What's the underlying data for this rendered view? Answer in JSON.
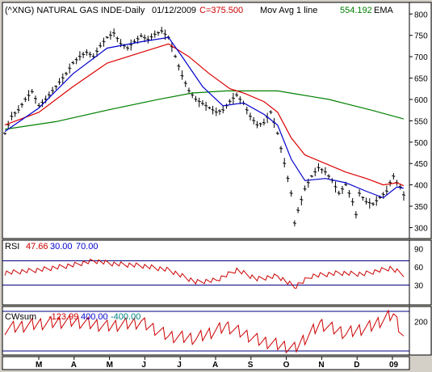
{
  "colors": {
    "background": "#d4d0c8",
    "panel": "#ffffff",
    "price": "#000000",
    "ema_short": "#0000cc",
    "ema_medium": "#dd0000",
    "ema_long": "#008000",
    "rsi_line": "#cc0000",
    "rsi_oversold": "#00aa00",
    "magenta": "#ff00ff",
    "guide": "#000080"
  },
  "header": {
    "symbol": "(^XNG) NATURAL GAS INDE-Daily",
    "date": "01/12/2009",
    "close": "C=375.500",
    "indicator": "Mov Avg 1 line",
    "ema_value": "554.192",
    "ema_label": "EMA"
  },
  "rsi_header": {
    "label": "RSI",
    "value": "47.66",
    "lower": "30.00",
    "upper": "70.00"
  },
  "cwsum_header": {
    "label": "CWsum",
    "value": "-123.99",
    "upper": "400.00",
    "lower": "-400.00"
  },
  "chart_data": [
    {
      "type": "ohlc",
      "title": "(^XNG) NATURAL GAS INDE-Daily",
      "x_ticks": [
        "M",
        "A",
        "M",
        "J",
        "J",
        "A",
        "S",
        "O",
        "N",
        "D",
        "09"
      ],
      "y_ticks": [
        300,
        350,
        400,
        450,
        500,
        550,
        600,
        650,
        700,
        750,
        800
      ],
      "ylim": [
        280,
        810
      ],
      "approx_close": [
        {
          "x": 0,
          "y": 520
        },
        {
          "x": 4,
          "y": 560
        },
        {
          "x": 8,
          "y": 575
        },
        {
          "x": 12,
          "y": 600
        },
        {
          "x": 16,
          "y": 618
        },
        {
          "x": 20,
          "y": 585
        },
        {
          "x": 24,
          "y": 600
        },
        {
          "x": 28,
          "y": 620
        },
        {
          "x": 32,
          "y": 640
        },
        {
          "x": 36,
          "y": 660
        },
        {
          "x": 40,
          "y": 685
        },
        {
          "x": 44,
          "y": 700
        },
        {
          "x": 48,
          "y": 710
        },
        {
          "x": 52,
          "y": 700
        },
        {
          "x": 56,
          "y": 725
        },
        {
          "x": 60,
          "y": 745
        },
        {
          "x": 64,
          "y": 755
        },
        {
          "x": 68,
          "y": 730
        },
        {
          "x": 72,
          "y": 720
        },
        {
          "x": 76,
          "y": 735
        },
        {
          "x": 80,
          "y": 748
        },
        {
          "x": 84,
          "y": 740
        },
        {
          "x": 88,
          "y": 752
        },
        {
          "x": 92,
          "y": 760
        },
        {
          "x": 96,
          "y": 745
        },
        {
          "x": 100,
          "y": 700
        },
        {
          "x": 104,
          "y": 655
        },
        {
          "x": 108,
          "y": 620
        },
        {
          "x": 112,
          "y": 600
        },
        {
          "x": 116,
          "y": 590
        },
        {
          "x": 120,
          "y": 580
        },
        {
          "x": 124,
          "y": 570
        },
        {
          "x": 128,
          "y": 575
        },
        {
          "x": 132,
          "y": 595
        },
        {
          "x": 136,
          "y": 610
        },
        {
          "x": 140,
          "y": 590
        },
        {
          "x": 144,
          "y": 560
        },
        {
          "x": 148,
          "y": 540
        },
        {
          "x": 152,
          "y": 545
        },
        {
          "x": 156,
          "y": 570
        },
        {
          "x": 160,
          "y": 520
        },
        {
          "x": 164,
          "y": 450
        },
        {
          "x": 168,
          "y": 380
        },
        {
          "x": 170,
          "y": 310
        },
        {
          "x": 172,
          "y": 340
        },
        {
          "x": 176,
          "y": 390
        },
        {
          "x": 180,
          "y": 420
        },
        {
          "x": 184,
          "y": 440
        },
        {
          "x": 188,
          "y": 430
        },
        {
          "x": 192,
          "y": 410
        },
        {
          "x": 196,
          "y": 380
        },
        {
          "x": 200,
          "y": 400
        },
        {
          "x": 204,
          "y": 360
        },
        {
          "x": 206,
          "y": 330
        },
        {
          "x": 208,
          "y": 380
        },
        {
          "x": 212,
          "y": 360
        },
        {
          "x": 216,
          "y": 355
        },
        {
          "x": 220,
          "y": 370
        },
        {
          "x": 224,
          "y": 385
        },
        {
          "x": 226,
          "y": 405
        },
        {
          "x": 228,
          "y": 420
        },
        {
          "x": 230,
          "y": 405
        },
        {
          "x": 232,
          "y": 395
        },
        {
          "x": 234,
          "y": 376
        }
      ],
      "ema_short": [
        {
          "x": 0,
          "y": 525
        },
        {
          "x": 20,
          "y": 580
        },
        {
          "x": 40,
          "y": 660
        },
        {
          "x": 60,
          "y": 720
        },
        {
          "x": 80,
          "y": 735
        },
        {
          "x": 96,
          "y": 745
        },
        {
          "x": 104,
          "y": 700
        },
        {
          "x": 116,
          "y": 630
        },
        {
          "x": 128,
          "y": 585
        },
        {
          "x": 140,
          "y": 592
        },
        {
          "x": 152,
          "y": 565
        },
        {
          "x": 160,
          "y": 540
        },
        {
          "x": 168,
          "y": 460
        },
        {
          "x": 176,
          "y": 410
        },
        {
          "x": 188,
          "y": 415
        },
        {
          "x": 200,
          "y": 405
        },
        {
          "x": 212,
          "y": 385
        },
        {
          "x": 222,
          "y": 370
        },
        {
          "x": 230,
          "y": 395
        },
        {
          "x": 234,
          "y": 392
        }
      ],
      "ema_medium": [
        {
          "x": 0,
          "y": 540
        },
        {
          "x": 20,
          "y": 570
        },
        {
          "x": 40,
          "y": 630
        },
        {
          "x": 60,
          "y": 685
        },
        {
          "x": 80,
          "y": 710
        },
        {
          "x": 96,
          "y": 730
        },
        {
          "x": 108,
          "y": 700
        },
        {
          "x": 120,
          "y": 660
        },
        {
          "x": 132,
          "y": 625
        },
        {
          "x": 140,
          "y": 615
        },
        {
          "x": 152,
          "y": 595
        },
        {
          "x": 160,
          "y": 570
        },
        {
          "x": 168,
          "y": 510
        },
        {
          "x": 176,
          "y": 470
        },
        {
          "x": 188,
          "y": 450
        },
        {
          "x": 200,
          "y": 430
        },
        {
          "x": 212,
          "y": 415
        },
        {
          "x": 222,
          "y": 400
        },
        {
          "x": 230,
          "y": 405
        },
        {
          "x": 234,
          "y": 398
        }
      ],
      "ema_long": [
        {
          "x": 0,
          "y": 530
        },
        {
          "x": 30,
          "y": 548
        },
        {
          "x": 60,
          "y": 575
        },
        {
          "x": 90,
          "y": 600
        },
        {
          "x": 110,
          "y": 615
        },
        {
          "x": 130,
          "y": 620
        },
        {
          "x": 160,
          "y": 620
        },
        {
          "x": 190,
          "y": 600
        },
        {
          "x": 215,
          "y": 575
        },
        {
          "x": 234,
          "y": 554.192
        }
      ]
    },
    {
      "type": "line",
      "title": "RSI",
      "y_ticks": [
        30,
        60,
        90
      ],
      "ylim": [
        0,
        100
      ],
      "guides": [
        30,
        70
      ],
      "approx": [
        {
          "x": 0,
          "y": 50
        },
        {
          "x": 20,
          "y": 55
        },
        {
          "x": 40,
          "y": 63
        },
        {
          "x": 52,
          "y": 70
        },
        {
          "x": 64,
          "y": 65
        },
        {
          "x": 80,
          "y": 62
        },
        {
          "x": 96,
          "y": 55
        },
        {
          "x": 112,
          "y": 35
        },
        {
          "x": 124,
          "y": 38
        },
        {
          "x": 136,
          "y": 55
        },
        {
          "x": 148,
          "y": 40
        },
        {
          "x": 160,
          "y": 45
        },
        {
          "x": 170,
          "y": 27
        },
        {
          "x": 180,
          "y": 45
        },
        {
          "x": 196,
          "y": 50
        },
        {
          "x": 210,
          "y": 48
        },
        {
          "x": 226,
          "y": 58
        },
        {
          "x": 234,
          "y": 47.66
        }
      ]
    },
    {
      "type": "line",
      "title": "CWsum",
      "y_ticks": [
        200
      ],
      "ylim": [
        -450,
        450
      ],
      "guides": [
        -400,
        400
      ],
      "approx": [
        {
          "x": 0,
          "y": 50
        },
        {
          "x": 20,
          "y": 150
        },
        {
          "x": 40,
          "y": 200
        },
        {
          "x": 60,
          "y": 100
        },
        {
          "x": 80,
          "y": 180
        },
        {
          "x": 96,
          "y": -100
        },
        {
          "x": 112,
          "y": -150
        },
        {
          "x": 130,
          "y": 100
        },
        {
          "x": 150,
          "y": -200
        },
        {
          "x": 170,
          "y": -350
        },
        {
          "x": 185,
          "y": 150
        },
        {
          "x": 200,
          "y": -50
        },
        {
          "x": 215,
          "y": 100
        },
        {
          "x": 228,
          "y": 350
        },
        {
          "x": 234,
          "y": -123.99
        }
      ]
    }
  ]
}
